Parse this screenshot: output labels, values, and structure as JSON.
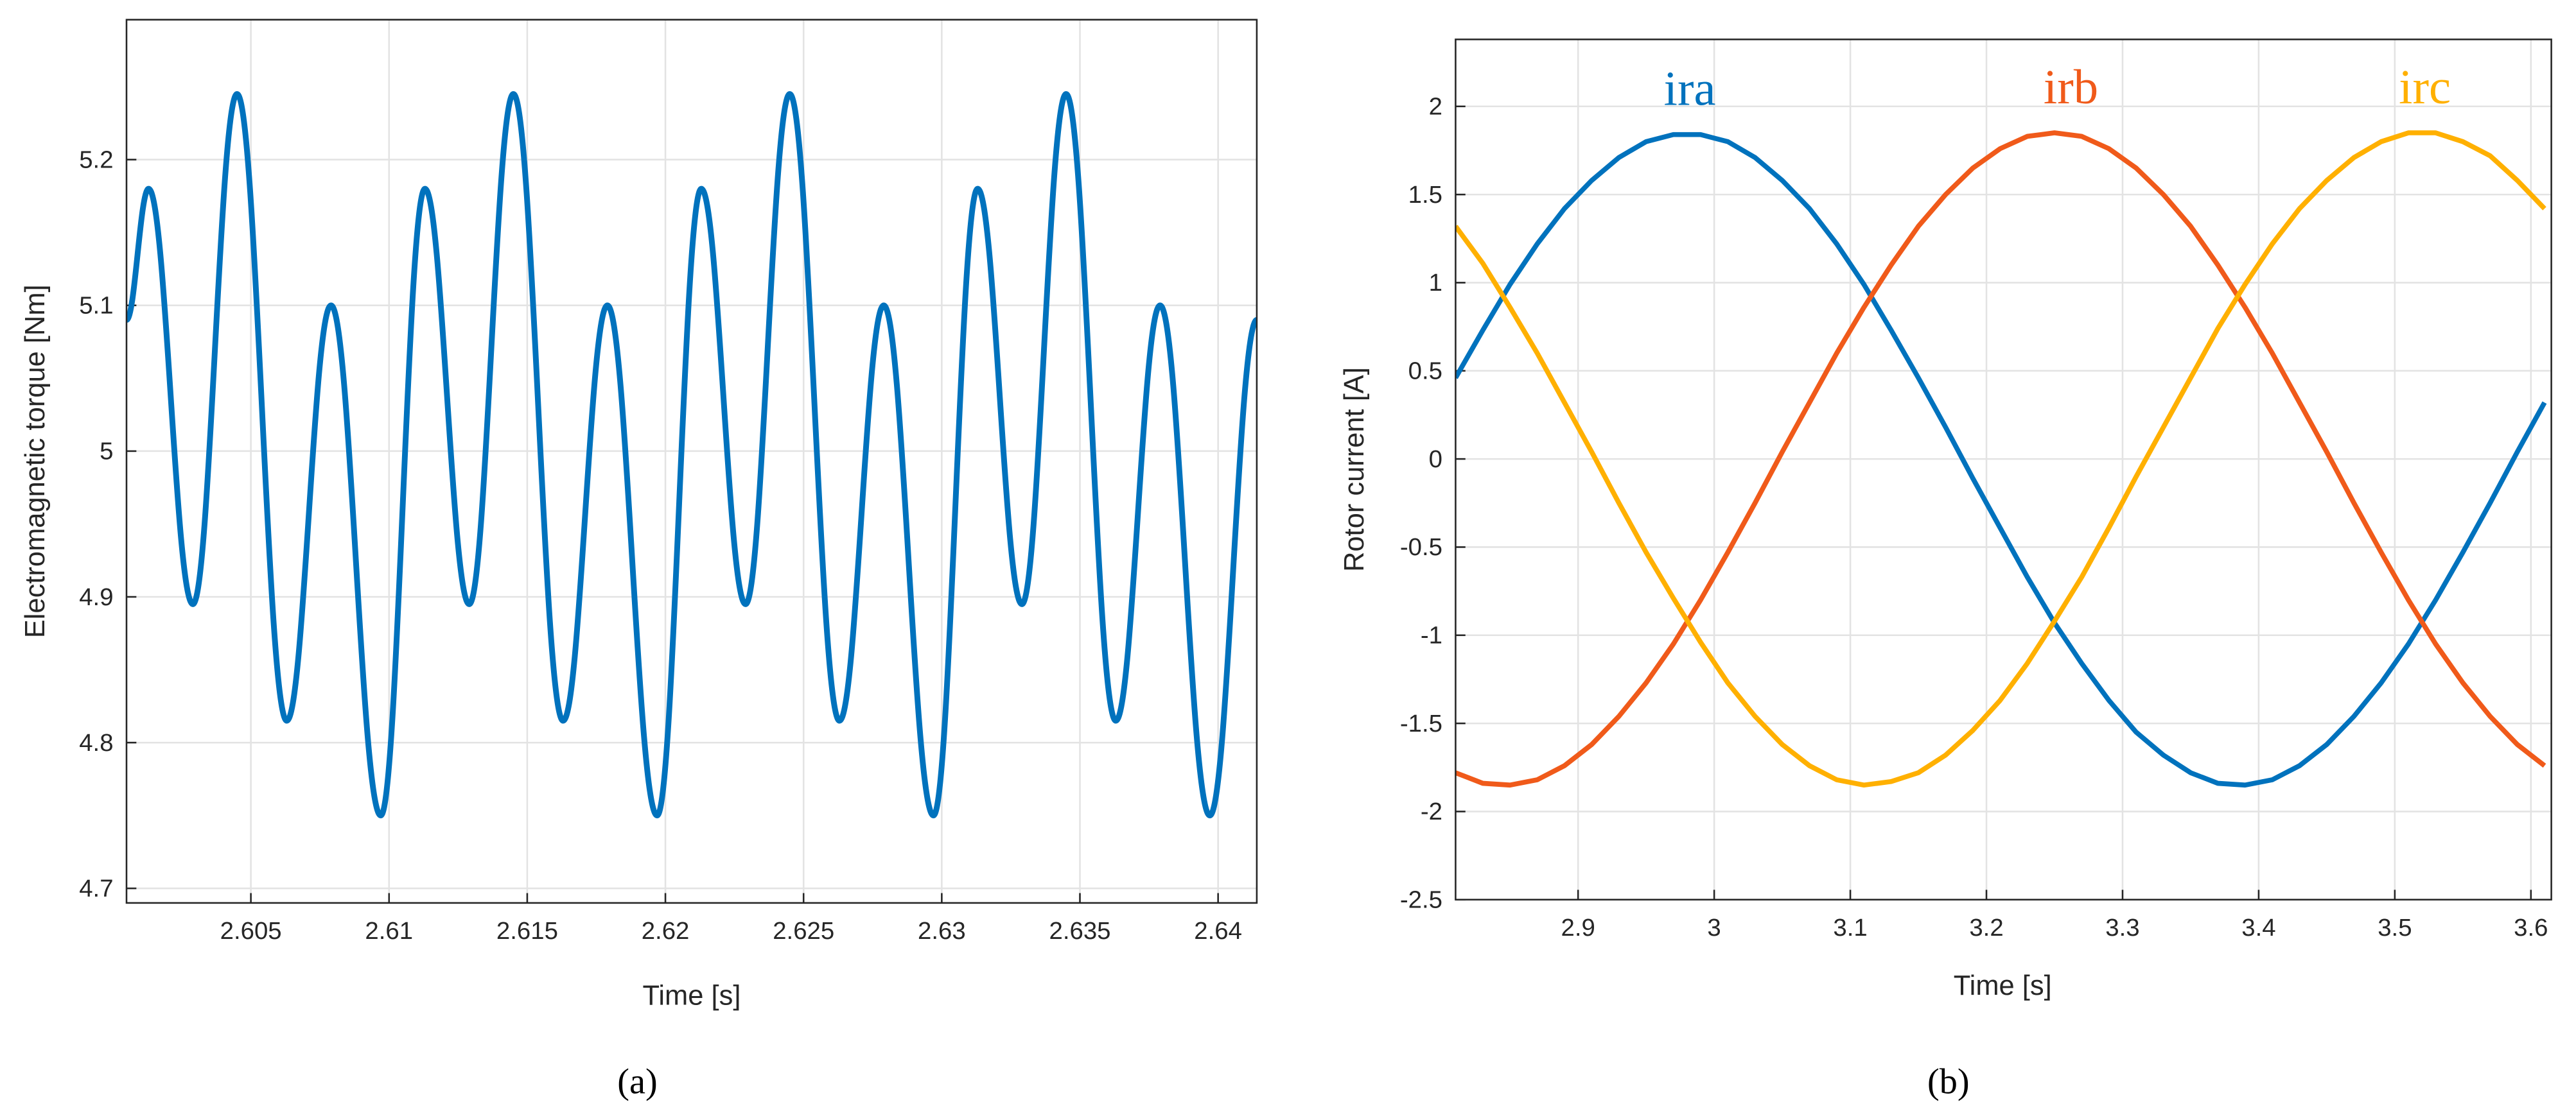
{
  "chart_data": [
    {
      "type": "line",
      "panel_label": "(a)",
      "x_label": "Time [s]",
      "y_label": "Electromagnetic torque [Nm]",
      "color": "#0072bd",
      "grid": true,
      "x": [
        2.6005,
        2.6013,
        2.6029,
        2.6045,
        2.6063,
        2.6079,
        2.6097,
        2.6113,
        2.6129,
        2.6145,
        2.6163,
        2.6179,
        2.6197,
        2.6213,
        2.6229,
        2.6245,
        2.6263,
        2.6279,
        2.6297,
        2.6313,
        2.6329,
        2.6345,
        2.6363,
        2.6379,
        2.6397,
        2.6414
      ],
      "values": [
        5.09,
        5.18,
        4.895,
        5.245,
        4.815,
        5.1,
        4.75,
        5.18,
        4.895,
        5.245,
        4.815,
        5.1,
        4.75,
        5.18,
        4.895,
        5.245,
        4.815,
        5.1,
        4.75,
        5.18,
        4.895,
        5.245,
        4.815,
        5.1,
        4.75,
        5.09
      ],
      "xlim": [
        2.6005,
        2.6414
      ],
      "xticks": [
        2.605,
        2.61,
        2.615,
        2.62,
        2.625,
        2.63,
        2.635,
        2.64
      ],
      "ylim": [
        4.69,
        5.296
      ],
      "yticks": [
        4.7,
        4.8,
        4.9,
        5,
        5.1,
        5.2
      ]
    },
    {
      "type": "line",
      "panel_label": "(b)",
      "x_label": "Time [s]",
      "y_label": "Rotor current [A]",
      "grid": true,
      "x": [
        2.81,
        2.83,
        2.85,
        2.87,
        2.89,
        2.91,
        2.93,
        2.95,
        2.97,
        2.99,
        3.01,
        3.03,
        3.05,
        3.07,
        3.09,
        3.11,
        3.13,
        3.15,
        3.17,
        3.19,
        3.21,
        3.23,
        3.25,
        3.27,
        3.29,
        3.31,
        3.33,
        3.35,
        3.37,
        3.39,
        3.41,
        3.43,
        3.45,
        3.47,
        3.49,
        3.51,
        3.53,
        3.55,
        3.57,
        3.59,
        3.61
      ],
      "series": [
        {
          "name": "ira",
          "color": "#0072bd",
          "values": [
            0.46,
            0.73,
            0.99,
            1.22,
            1.42,
            1.58,
            1.71,
            1.8,
            1.84,
            1.84,
            1.8,
            1.71,
            1.58,
            1.42,
            1.22,
            0.99,
            0.73,
            0.46,
            0.18,
            -0.11,
            -0.39,
            -0.67,
            -0.93,
            -1.16,
            -1.37,
            -1.55,
            -1.68,
            -1.78,
            -1.84,
            -1.85,
            -1.82,
            -1.74,
            -1.62,
            -1.46,
            -1.27,
            -1.05,
            -0.8,
            -0.53,
            -0.25,
            0.04,
            0.32
          ]
        },
        {
          "name": "irb",
          "color": "#f05a1a",
          "values": [
            -1.78,
            -1.84,
            -1.85,
            -1.82,
            -1.74,
            -1.62,
            -1.46,
            -1.27,
            -1.05,
            -0.8,
            -0.53,
            -0.25,
            0.04,
            0.32,
            0.6,
            0.86,
            1.1,
            1.32,
            1.5,
            1.65,
            1.76,
            1.83,
            1.85,
            1.83,
            1.76,
            1.65,
            1.5,
            1.32,
            1.1,
            0.86,
            0.6,
            0.32,
            0.04,
            -0.25,
            -0.53,
            -0.8,
            -1.05,
            -1.27,
            -1.46,
            -1.62,
            -1.74
          ]
        },
        {
          "name": "irc",
          "color": "#ffb000",
          "values": [
            1.32,
            1.11,
            0.86,
            0.6,
            0.32,
            0.04,
            -0.25,
            -0.53,
            -0.79,
            -1.04,
            -1.27,
            -1.46,
            -1.62,
            -1.74,
            -1.82,
            -1.85,
            -1.83,
            -1.78,
            -1.68,
            -1.54,
            -1.37,
            -1.16,
            -0.92,
            -0.67,
            -0.39,
            -0.1,
            0.18,
            0.46,
            0.74,
            0.99,
            1.22,
            1.42,
            1.58,
            1.71,
            1.8,
            1.85,
            1.85,
            1.8,
            1.72,
            1.58,
            1.42
          ]
        }
      ],
      "xlim": [
        2.81,
        3.615
      ],
      "xticks": [
        2.9,
        3,
        3.1,
        3.2,
        3.3,
        3.4,
        3.5,
        3.6
      ],
      "ylim": [
        -2.5,
        2.38
      ],
      "yticks": [
        -2.5,
        -2,
        -1.5,
        -1,
        -0.5,
        0,
        0.5,
        1,
        1.5,
        2
      ]
    }
  ]
}
